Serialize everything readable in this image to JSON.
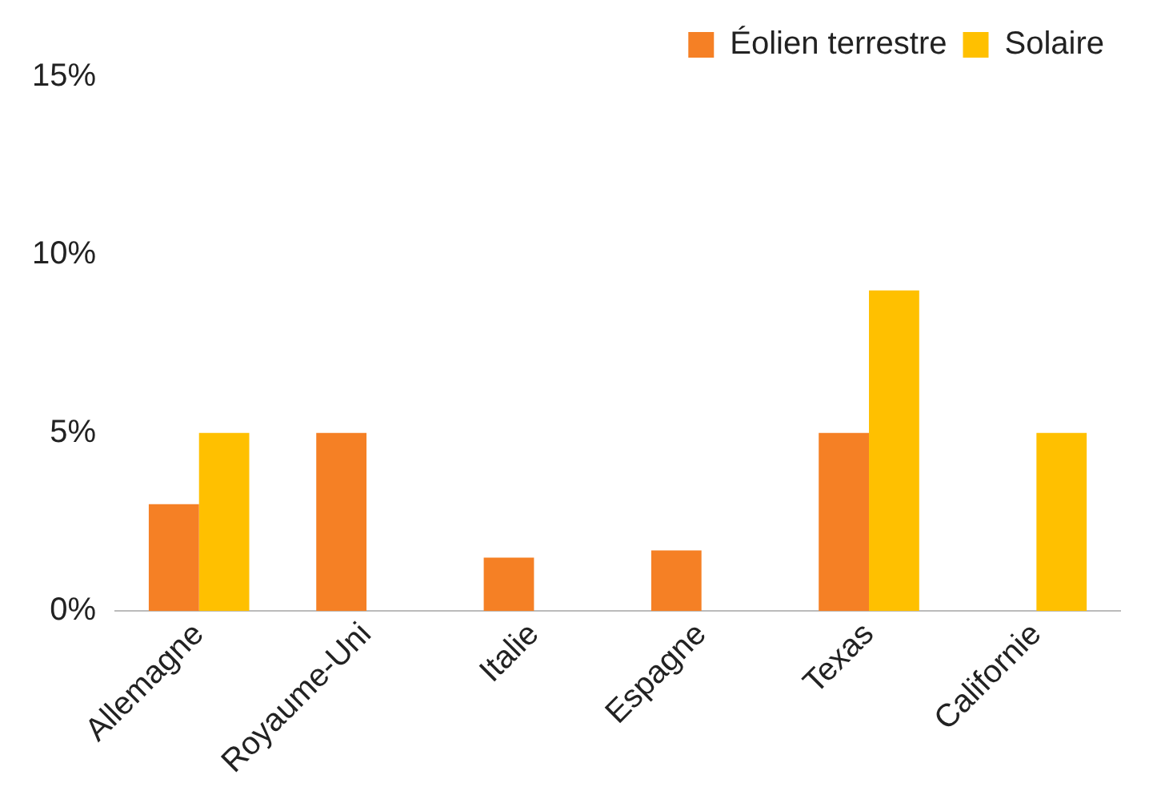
{
  "chart_data": {
    "type": "bar",
    "categories": [
      "Allemagne",
      "Royaume-Uni",
      "Italie",
      "Espagne",
      "Texas",
      "Californie"
    ],
    "series": [
      {
        "name": "Éolien terrestre",
        "color": "#f58025",
        "values": [
          3,
          5,
          1.5,
          1.7,
          5,
          null
        ]
      },
      {
        "name": "Solaire",
        "color": "#ffc000",
        "values": [
          5,
          null,
          null,
          null,
          9,
          5
        ]
      }
    ],
    "ylim": [
      0,
      15
    ],
    "yticks": [
      {
        "value": 0,
        "label": "0%"
      },
      {
        "value": 5,
        "label": "5%"
      },
      {
        "value": 10,
        "label": "10%"
      },
      {
        "value": 15,
        "label": "15%"
      }
    ],
    "grid": false,
    "legend": "top right"
  }
}
